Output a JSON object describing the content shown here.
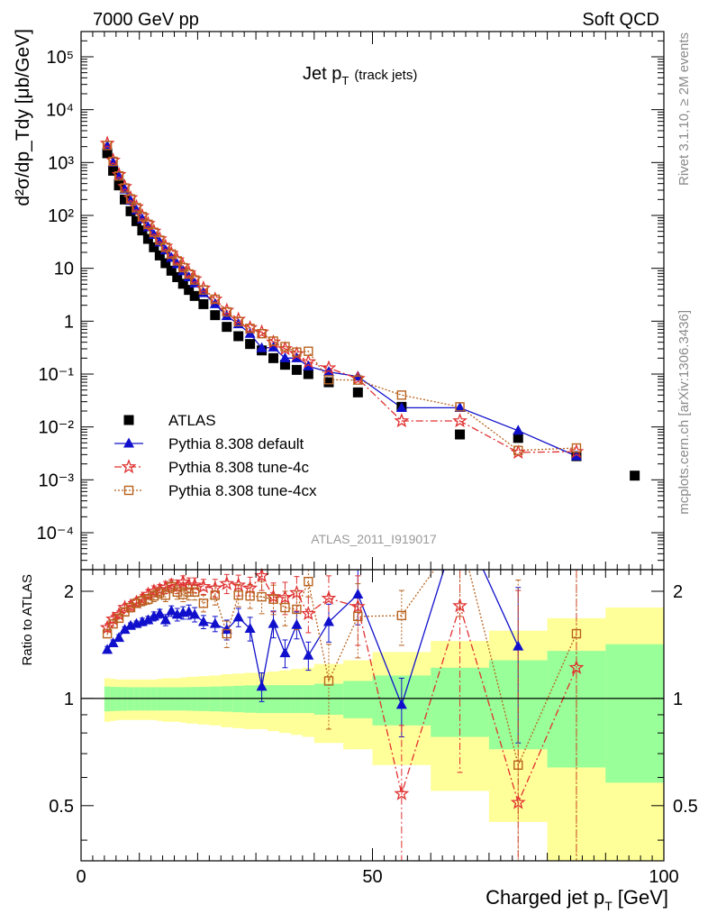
{
  "header": {
    "energy": "7000 GeV pp",
    "process": "Soft QCD",
    "title_main": "Jet p",
    "title_sub": "T",
    "title_note": "(track jets)",
    "analysis_id": "ATLAS_2011_I919017",
    "rivet_note": "Rivet 3.1.10, ≥ 2M events",
    "source_note": "mcplots.cern.ch [arXiv:1306.3436]"
  },
  "axes": {
    "xlabel_main": "Charged jet p",
    "xlabel_sub": "T",
    "xlabel_unit": "[GeV]",
    "ylabel_top": "d²σ/dp_Tdy [μb/GeV]",
    "ylabel_bottom": "Ratio to ATLAS",
    "x_ticks": [
      "0",
      "50",
      "100"
    ],
    "y_ticks_top": [
      "10⁻⁴",
      "10⁻³",
      "10⁻²",
      "10⁻¹",
      "1",
      "10",
      "10²",
      "10³",
      "10⁴",
      "10⁵"
    ],
    "y_ticks_bottom": [
      "0.5",
      "1",
      "2"
    ]
  },
  "legend": [
    {
      "label": "ATLAS",
      "marker": "square",
      "color": "#000000"
    },
    {
      "label": "Pythia 8.308 default",
      "marker": "triangle",
      "color": "#1010cc"
    },
    {
      "label": "Pythia 8.308 tune-4c",
      "marker": "star",
      "color": "#e03030"
    },
    {
      "label": "Pythia 8.308 tune-4cx",
      "marker": "open-square",
      "color": "#b8621e"
    }
  ],
  "colors": {
    "band_inner": "#99ff99",
    "band_outer": "#ffff99"
  },
  "chart_data": {
    "type": "scatter",
    "xlim": [
      0,
      100
    ],
    "ylim_top": [
      2e-05,
      300000
    ],
    "ylim_bottom": [
      0.35,
      2.3
    ],
    "y_scale_top": "log",
    "y_scale_bottom": "log",
    "x": [
      4.5,
      5.5,
      6.5,
      7.5,
      8.5,
      9.5,
      10.5,
      11.5,
      12.5,
      13.5,
      14.5,
      15.5,
      16.5,
      17.5,
      18.5,
      19.5,
      21,
      23,
      25,
      27,
      29,
      31,
      33,
      35,
      37,
      39,
      42.5,
      47.5,
      55,
      65,
      75,
      85,
      95
    ],
    "band_x_edges": [
      4,
      5,
      6,
      7,
      8,
      9,
      10,
      11,
      12,
      13,
      14,
      15,
      16,
      17,
      18,
      19,
      20,
      22,
      24,
      26,
      28,
      30,
      32,
      34,
      36,
      38,
      40,
      45,
      50,
      60,
      70,
      80,
      90,
      100
    ],
    "band_inner": [
      0.08,
      0.078,
      0.077,
      0.076,
      0.075,
      0.075,
      0.075,
      0.075,
      0.075,
      0.075,
      0.075,
      0.075,
      0.075,
      0.075,
      0.076,
      0.077,
      0.078,
      0.08,
      0.082,
      0.085,
      0.088,
      0.09,
      0.09,
      0.09,
      0.09,
      0.09,
      0.1,
      0.12,
      0.16,
      0.22,
      0.28,
      0.36,
      0.42
    ],
    "band_outer": [
      0.14,
      0.135,
      0.13,
      0.13,
      0.13,
      0.13,
      0.13,
      0.13,
      0.13,
      0.135,
      0.14,
      0.14,
      0.14,
      0.145,
      0.15,
      0.15,
      0.155,
      0.16,
      0.17,
      0.175,
      0.18,
      0.18,
      0.19,
      0.2,
      0.21,
      0.22,
      0.25,
      0.28,
      0.35,
      0.45,
      0.55,
      0.68,
      0.8
    ],
    "series": [
      {
        "name": "ATLAS",
        "marker": "square",
        "color": "#000000",
        "values": [
          1500,
          700,
          370,
          200,
          120,
          78,
          52,
          36,
          25,
          17.5,
          12.5,
          9,
          6.8,
          5.1,
          3.9,
          3.0,
          2.1,
          1.3,
          0.78,
          0.52,
          0.37,
          0.28,
          0.2,
          0.15,
          0.12,
          0.1,
          0.07,
          0.045,
          0.024,
          0.0072,
          0.0062,
          0.0028,
          0.0012
        ],
        "ratio": [],
        "ratio_err": []
      },
      {
        "name": "Pythia 8.308 default",
        "marker": "triangle",
        "color": "#1010cc",
        "line": "solid",
        "values": [
          2050,
          1000,
          550,
          310,
          190,
          125,
          85,
          60,
          43,
          31,
          22,
          15.8,
          12,
          8.8,
          6.8,
          5.2,
          3.4,
          2.1,
          1.25,
          0.88,
          0.58,
          0.31,
          0.32,
          0.2,
          0.2,
          0.14,
          0.11,
          0.09,
          0.023,
          0.023,
          0.0085,
          0.0028,
          null
        ],
        "ratio": [
          1.37,
          1.43,
          1.48,
          1.56,
          1.6,
          1.62,
          1.64,
          1.66,
          1.7,
          1.73,
          1.66,
          1.76,
          1.72,
          1.74,
          1.75,
          1.72,
          1.64,
          1.62,
          1.56,
          1.69,
          1.57,
          1.08,
          1.62,
          1.34,
          1.61,
          1.32,
          1.64,
          1.96,
          0.96,
          3.2,
          1.4,
          null,
          null
        ],
        "ratio_err": [
          0.03,
          0.03,
          0.03,
          0.03,
          0.03,
          0.03,
          0.04,
          0.04,
          0.05,
          0.05,
          0.06,
          0.06,
          0.07,
          0.07,
          0.08,
          0.08,
          0.07,
          0.08,
          0.1,
          0.1,
          0.12,
          0.1,
          0.14,
          0.12,
          0.14,
          0.12,
          0.2,
          0.35,
          0.18,
          0.8,
          0.65,
          null,
          null
        ]
      },
      {
        "name": "Pythia 8.308 tune-4c",
        "marker": "star",
        "color": "#e03030",
        "line": "dashdot",
        "values": [
          2300,
          1100,
          590,
          350,
          215,
          145,
          98,
          70,
          50,
          36,
          26,
          19,
          14.4,
          11,
          8.2,
          6.3,
          4.2,
          2.6,
          1.6,
          1.08,
          0.75,
          0.62,
          0.4,
          0.3,
          0.24,
          0.17,
          0.13,
          0.082,
          0.013,
          0.013,
          0.0033,
          0.0034,
          null
        ],
        "ratio": [
          1.58,
          1.67,
          1.72,
          1.8,
          1.82,
          1.86,
          1.9,
          1.96,
          2.0,
          2.02,
          2.05,
          2.08,
          2.06,
          2.12,
          2.08,
          2.08,
          2.06,
          2.04,
          2.1,
          2.08,
          2.04,
          2.21,
          1.93,
          1.92,
          1.98,
          1.73,
          1.91,
          1.81,
          0.54,
          1.82,
          0.51,
          1.22,
          null
        ],
        "ratio_err": [
          0.04,
          0.04,
          0.04,
          0.04,
          0.05,
          0.05,
          0.06,
          0.06,
          0.07,
          0.07,
          0.08,
          0.08,
          0.09,
          0.09,
          0.1,
          0.1,
          0.1,
          0.12,
          0.13,
          0.14,
          0.15,
          0.2,
          0.18,
          0.2,
          0.22,
          0.2,
          0.3,
          0.4,
          0.3,
          1.2,
          1.5,
          2.5,
          null
        ]
      },
      {
        "name": "Pythia 8.308 tune-4cx",
        "marker": "open-square",
        "color": "#b8621e",
        "line": "dotted",
        "values": [
          2100,
          1050,
          560,
          330,
          205,
          140,
          95,
          68,
          48,
          34,
          25,
          18.6,
          13.8,
          10.3,
          7.8,
          6.0,
          3.9,
          2.6,
          1.5,
          0.98,
          0.73,
          0.58,
          0.42,
          0.33,
          0.26,
          0.27,
          0.078,
          0.077,
          0.04,
          0.024,
          0.0036,
          0.004,
          null
        ],
        "ratio": [
          1.52,
          1.62,
          1.68,
          1.75,
          1.8,
          1.85,
          1.88,
          1.9,
          1.94,
          1.98,
          1.95,
          2.06,
          1.99,
          1.96,
          1.99,
          1.99,
          1.85,
          1.95,
          1.52,
          1.95,
          1.94,
          1.93,
          1.9,
          1.8,
          1.78,
          2.13,
          1.12,
          1.7,
          1.71,
          2.9,
          0.65,
          1.52,
          null
        ],
        "ratio_err": [
          0.04,
          0.04,
          0.04,
          0.04,
          0.05,
          0.05,
          0.06,
          0.06,
          0.07,
          0.07,
          0.08,
          0.08,
          0.09,
          0.09,
          0.1,
          0.1,
          0.1,
          0.12,
          0.13,
          0.14,
          0.15,
          0.2,
          0.18,
          0.2,
          0.22,
          0.2,
          0.3,
          0.4,
          0.3,
          1.2,
          1.5,
          2.5,
          null
        ]
      }
    ]
  }
}
